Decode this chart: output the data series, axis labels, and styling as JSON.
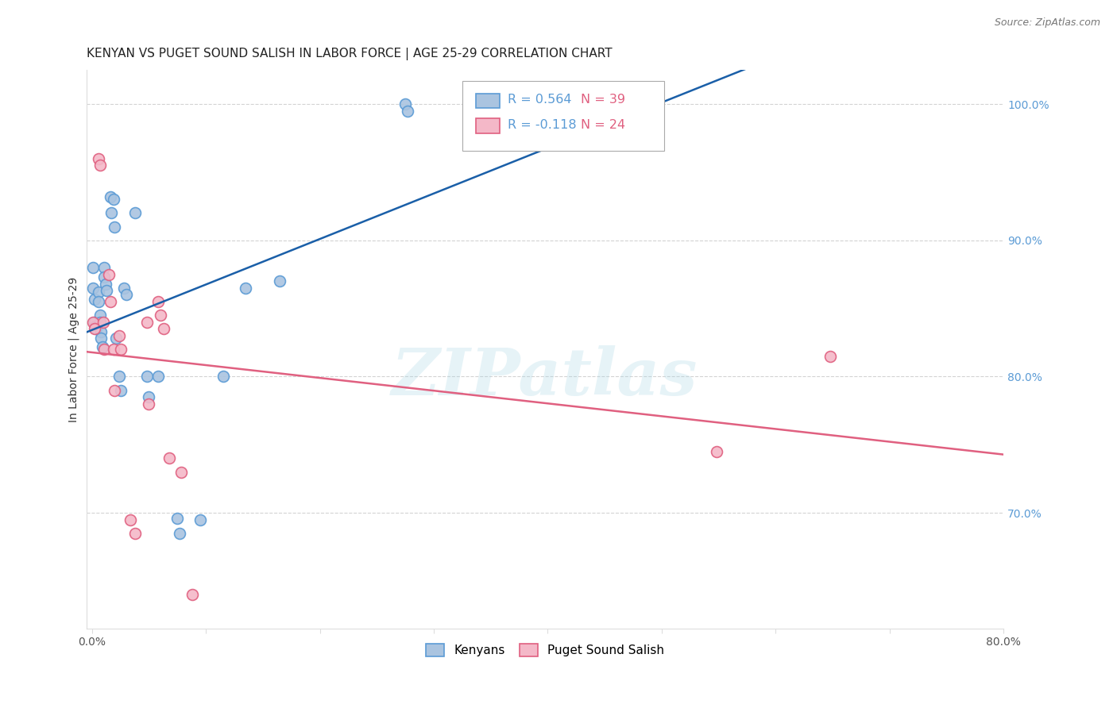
{
  "title": "KENYAN VS PUGET SOUND SALISH IN LABOR FORCE | AGE 25-29 CORRELATION CHART",
  "source": "Source: ZipAtlas.com",
  "xlabel": "",
  "ylabel": "In Labor Force | Age 25-29",
  "xlim": [
    -0.005,
    0.8
  ],
  "ylim": [
    0.615,
    1.025
  ],
  "xticks": [
    0.0,
    0.1,
    0.2,
    0.3,
    0.4,
    0.5,
    0.6,
    0.7,
    0.8
  ],
  "xticklabels": [
    "0.0%",
    "",
    "",
    "",
    "",
    "",
    "",
    "",
    "80.0%"
  ],
  "yticks": [
    0.7,
    0.8,
    0.9,
    1.0
  ],
  "yticklabels_right": [
    "70.0%",
    "80.0%",
    "90.0%",
    "100.0%"
  ],
  "background_color": "#ffffff",
  "grid_color": "#c8c8c8",
  "watermark": "ZIPatlas",
  "kenyan_color": "#aac4e0",
  "kenyan_edge_color": "#5b9bd5",
  "salish_color": "#f4b8c8",
  "salish_edge_color": "#e06080",
  "kenyan_R": 0.564,
  "kenyan_N": 39,
  "salish_R": -0.118,
  "salish_N": 24,
  "legend_R_color": "#5b9bd5",
  "legend_N_color": "#e06080",
  "kenyan_x": [
    0.001,
    0.001,
    0.002,
    0.002,
    0.003,
    0.004,
    0.006,
    0.006,
    0.007,
    0.007,
    0.008,
    0.008,
    0.009,
    0.011,
    0.011,
    0.012,
    0.013,
    0.016,
    0.017,
    0.019,
    0.02,
    0.021,
    0.024,
    0.025,
    0.028,
    0.03,
    0.038,
    0.048,
    0.05,
    0.058,
    0.075,
    0.077,
    0.095,
    0.115,
    0.135,
    0.165,
    0.275,
    0.277,
    0.365
  ],
  "kenyan_y": [
    0.88,
    0.865,
    0.857,
    0.84,
    0.837,
    0.835,
    0.862,
    0.855,
    0.845,
    0.84,
    0.833,
    0.828,
    0.822,
    0.88,
    0.873,
    0.868,
    0.863,
    0.932,
    0.92,
    0.93,
    0.91,
    0.828,
    0.8,
    0.79,
    0.865,
    0.86,
    0.92,
    0.8,
    0.785,
    0.8,
    0.696,
    0.685,
    0.695,
    0.8,
    0.865,
    0.87,
    1.0,
    0.995,
    1.0
  ],
  "salish_x": [
    0.001,
    0.002,
    0.006,
    0.007,
    0.01,
    0.011,
    0.015,
    0.016,
    0.019,
    0.02,
    0.024,
    0.025,
    0.034,
    0.038,
    0.048,
    0.05,
    0.058,
    0.06,
    0.063,
    0.068,
    0.078,
    0.088,
    0.548,
    0.648
  ],
  "salish_y": [
    0.84,
    0.835,
    0.96,
    0.955,
    0.84,
    0.82,
    0.875,
    0.855,
    0.82,
    0.79,
    0.83,
    0.82,
    0.695,
    0.685,
    0.84,
    0.78,
    0.855,
    0.845,
    0.835,
    0.74,
    0.73,
    0.64,
    0.745,
    0.815
  ],
  "kenyan_line_color": "#1a5fa8",
  "salish_line_color": "#e06080",
  "marker_size": 10,
  "marker_linewidth": 1.2
}
